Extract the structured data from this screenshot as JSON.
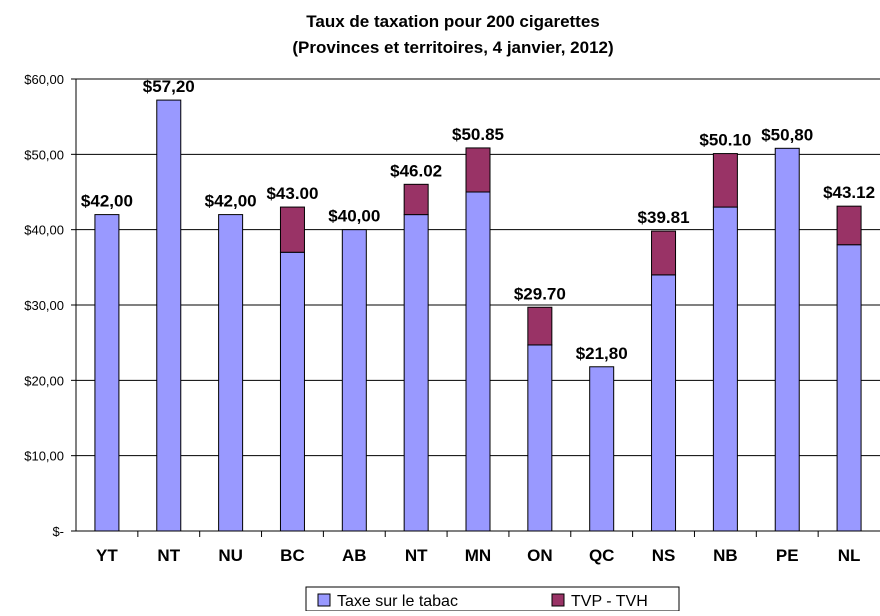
{
  "chart_data": {
    "type": "bar",
    "stacked": true,
    "title_lines": [
      "Taux de taxation pour 200 cigarettes",
      "(Provinces et territoires, 4 janvier, 2012)"
    ],
    "categories": [
      "YT",
      "NT",
      "NU",
      "BC",
      "AB",
      "NT",
      "MN",
      "ON",
      "QC",
      "NS",
      "NB",
      "PE",
      "NL"
    ],
    "series": [
      {
        "name": "Taxe sur le tabac",
        "color": "#9999FF",
        "values": [
          42.0,
          57.2,
          42.0,
          37.0,
          40.0,
          42.0,
          45.0,
          24.7,
          21.8,
          34.0,
          43.0,
          50.8,
          38.0
        ]
      },
      {
        "name": "TVP - TVH",
        "color": "#993366",
        "values": [
          0,
          0,
          0,
          6.0,
          0,
          4.02,
          5.85,
          5.0,
          0,
          5.81,
          7.1,
          0,
          5.12
        ]
      }
    ],
    "data_labels": [
      "$42,00",
      "$57,20",
      "$42,00",
      "$43.00",
      "$40,00",
      "$46.02",
      "$50.85",
      "$29.70",
      "$21,80",
      "$39.81",
      "$50.10",
      "$50,80",
      "$43.12"
    ],
    "ylim": [
      0,
      60
    ],
    "yticks": [
      0,
      10,
      20,
      30,
      40,
      50,
      60
    ],
    "ytick_labels": [
      "$-",
      "$10,00",
      "$20,00",
      "$30,00",
      "$40,00",
      "$50,00",
      "$60,00"
    ],
    "grid": true,
    "legend_position": "bottom"
  }
}
